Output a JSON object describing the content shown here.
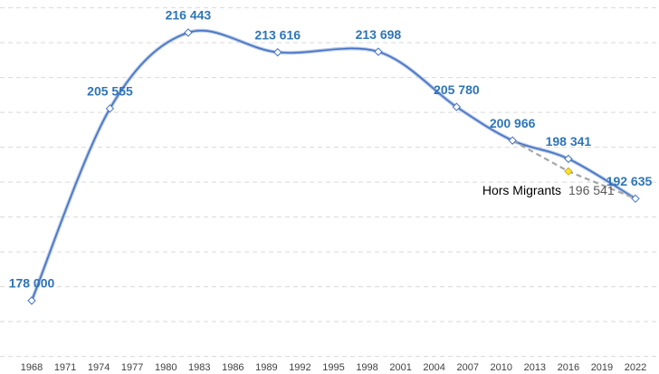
{
  "chart_data": {
    "type": "line",
    "x": [
      1968,
      1975,
      1982,
      1990,
      1999,
      2006,
      2011,
      2016,
      2022
    ],
    "xlim": [
      1968,
      2022
    ],
    "xticks": [
      1968,
      1971,
      1974,
      1977,
      1980,
      1983,
      1986,
      1989,
      1992,
      1995,
      1998,
      2001,
      2004,
      2007,
      2010,
      2013,
      2016,
      2019,
      2022
    ],
    "ylim": [
      170000,
      220000
    ],
    "yticks": [
      170000,
      175000,
      180000,
      185000,
      190000,
      195000,
      200000,
      205000,
      210000,
      215000,
      220000
    ],
    "grid": true,
    "series": [
      {
        "color": "#4472c4",
        "values": [
          178000,
          205555,
          216443,
          213616,
          213698,
          205780,
          200966,
          198341,
          192635
        ],
        "value_labels": [
          "178 000",
          "205 555",
          "216 443",
          "213 616",
          "213 698",
          "205 780",
          "200 966",
          "198 341",
          "192 635"
        ]
      },
      {
        "name": "Hors Migrants",
        "color": "#a6a6a6",
        "marker_color": "#ffe033",
        "values": [
          null,
          null,
          null,
          null,
          null,
          null,
          200966,
          196541,
          192635
        ],
        "value_labels": [
          null,
          null,
          null,
          null,
          null,
          null,
          null,
          "196 541",
          null
        ]
      }
    ]
  }
}
